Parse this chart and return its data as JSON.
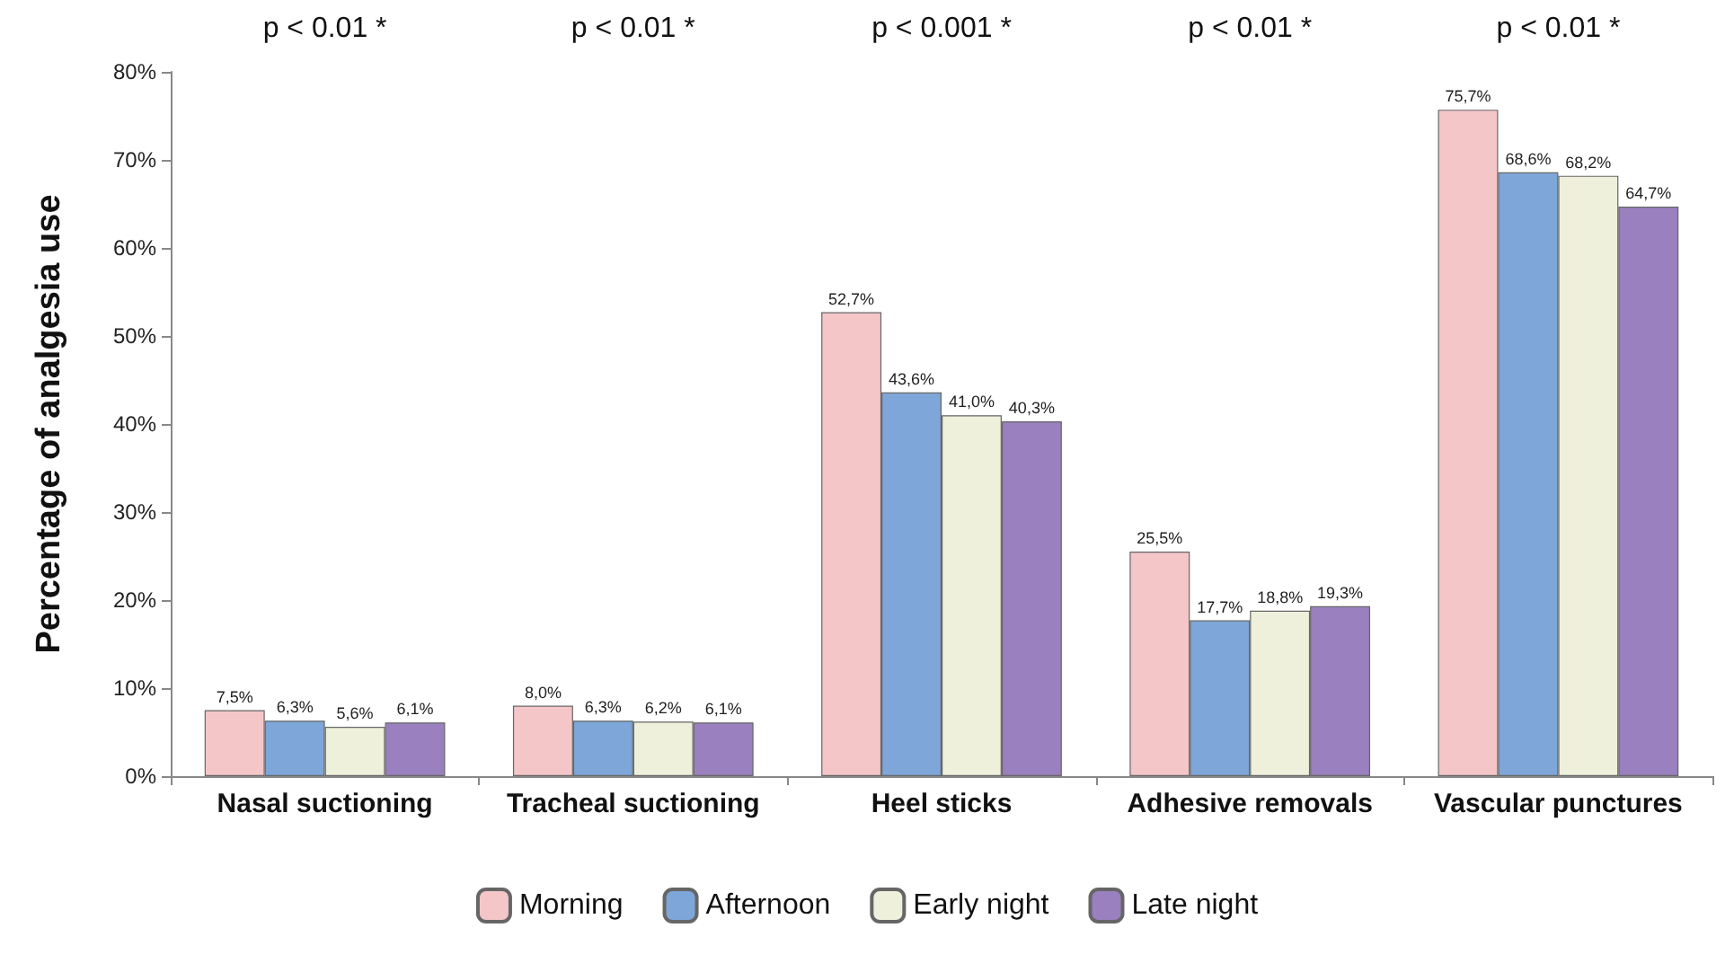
{
  "chart_data": {
    "type": "bar",
    "ylabel": "Percentage of analgesia use",
    "categories": [
      "Nasal suctioning",
      "Tracheal suctioning",
      "Heel sticks",
      "Adhesive removals",
      "Vascular punctures"
    ],
    "series": [
      {
        "name": "Morning",
        "color": "#f4c6c8",
        "values": [
          7.5,
          8.0,
          52.7,
          25.5,
          75.7
        ],
        "value_labels": [
          "7,5%",
          "8,0%",
          "52,7%",
          "25,5%",
          "75,7%"
        ]
      },
      {
        "name": "Afternoon",
        "color": "#7ea6d8",
        "values": [
          6.3,
          6.3,
          43.6,
          17.7,
          68.6
        ],
        "value_labels": [
          "6,3%",
          "6,3%",
          "43,6%",
          "17,7%",
          "68,6%"
        ]
      },
      {
        "name": "Early night",
        "color": "#eef0dc",
        "values": [
          5.6,
          6.2,
          41.0,
          18.8,
          68.2
        ],
        "value_labels": [
          "5,6%",
          "6,2%",
          "41,0%",
          "18,8%",
          "68,2%"
        ]
      },
      {
        "name": "Late night",
        "color": "#9a80be",
        "values": [
          6.1,
          6.1,
          40.3,
          19.3,
          64.7
        ],
        "value_labels": [
          "6,1%",
          "6,1%",
          "40,3%",
          "19,3%",
          "64,7%"
        ]
      }
    ],
    "ylim": [
      0,
      80
    ],
    "yticks": [
      {
        "value": 0,
        "label": "0%"
      },
      {
        "value": 10,
        "label": "10%"
      },
      {
        "value": 20,
        "label": "20%"
      },
      {
        "value": 30,
        "label": "30%"
      },
      {
        "value": 40,
        "label": "40%"
      },
      {
        "value": 50,
        "label": "50%"
      },
      {
        "value": 60,
        "label": "60%"
      },
      {
        "value": 70,
        "label": "70%"
      },
      {
        "value": 80,
        "label": "80%"
      }
    ],
    "legend": "bottom",
    "annotations": [
      "p < 0.01 *",
      "p < 0.01 *",
      "p < 0.001 *",
      "p < 0.01 *",
      "p < 0.01 *"
    ]
  }
}
